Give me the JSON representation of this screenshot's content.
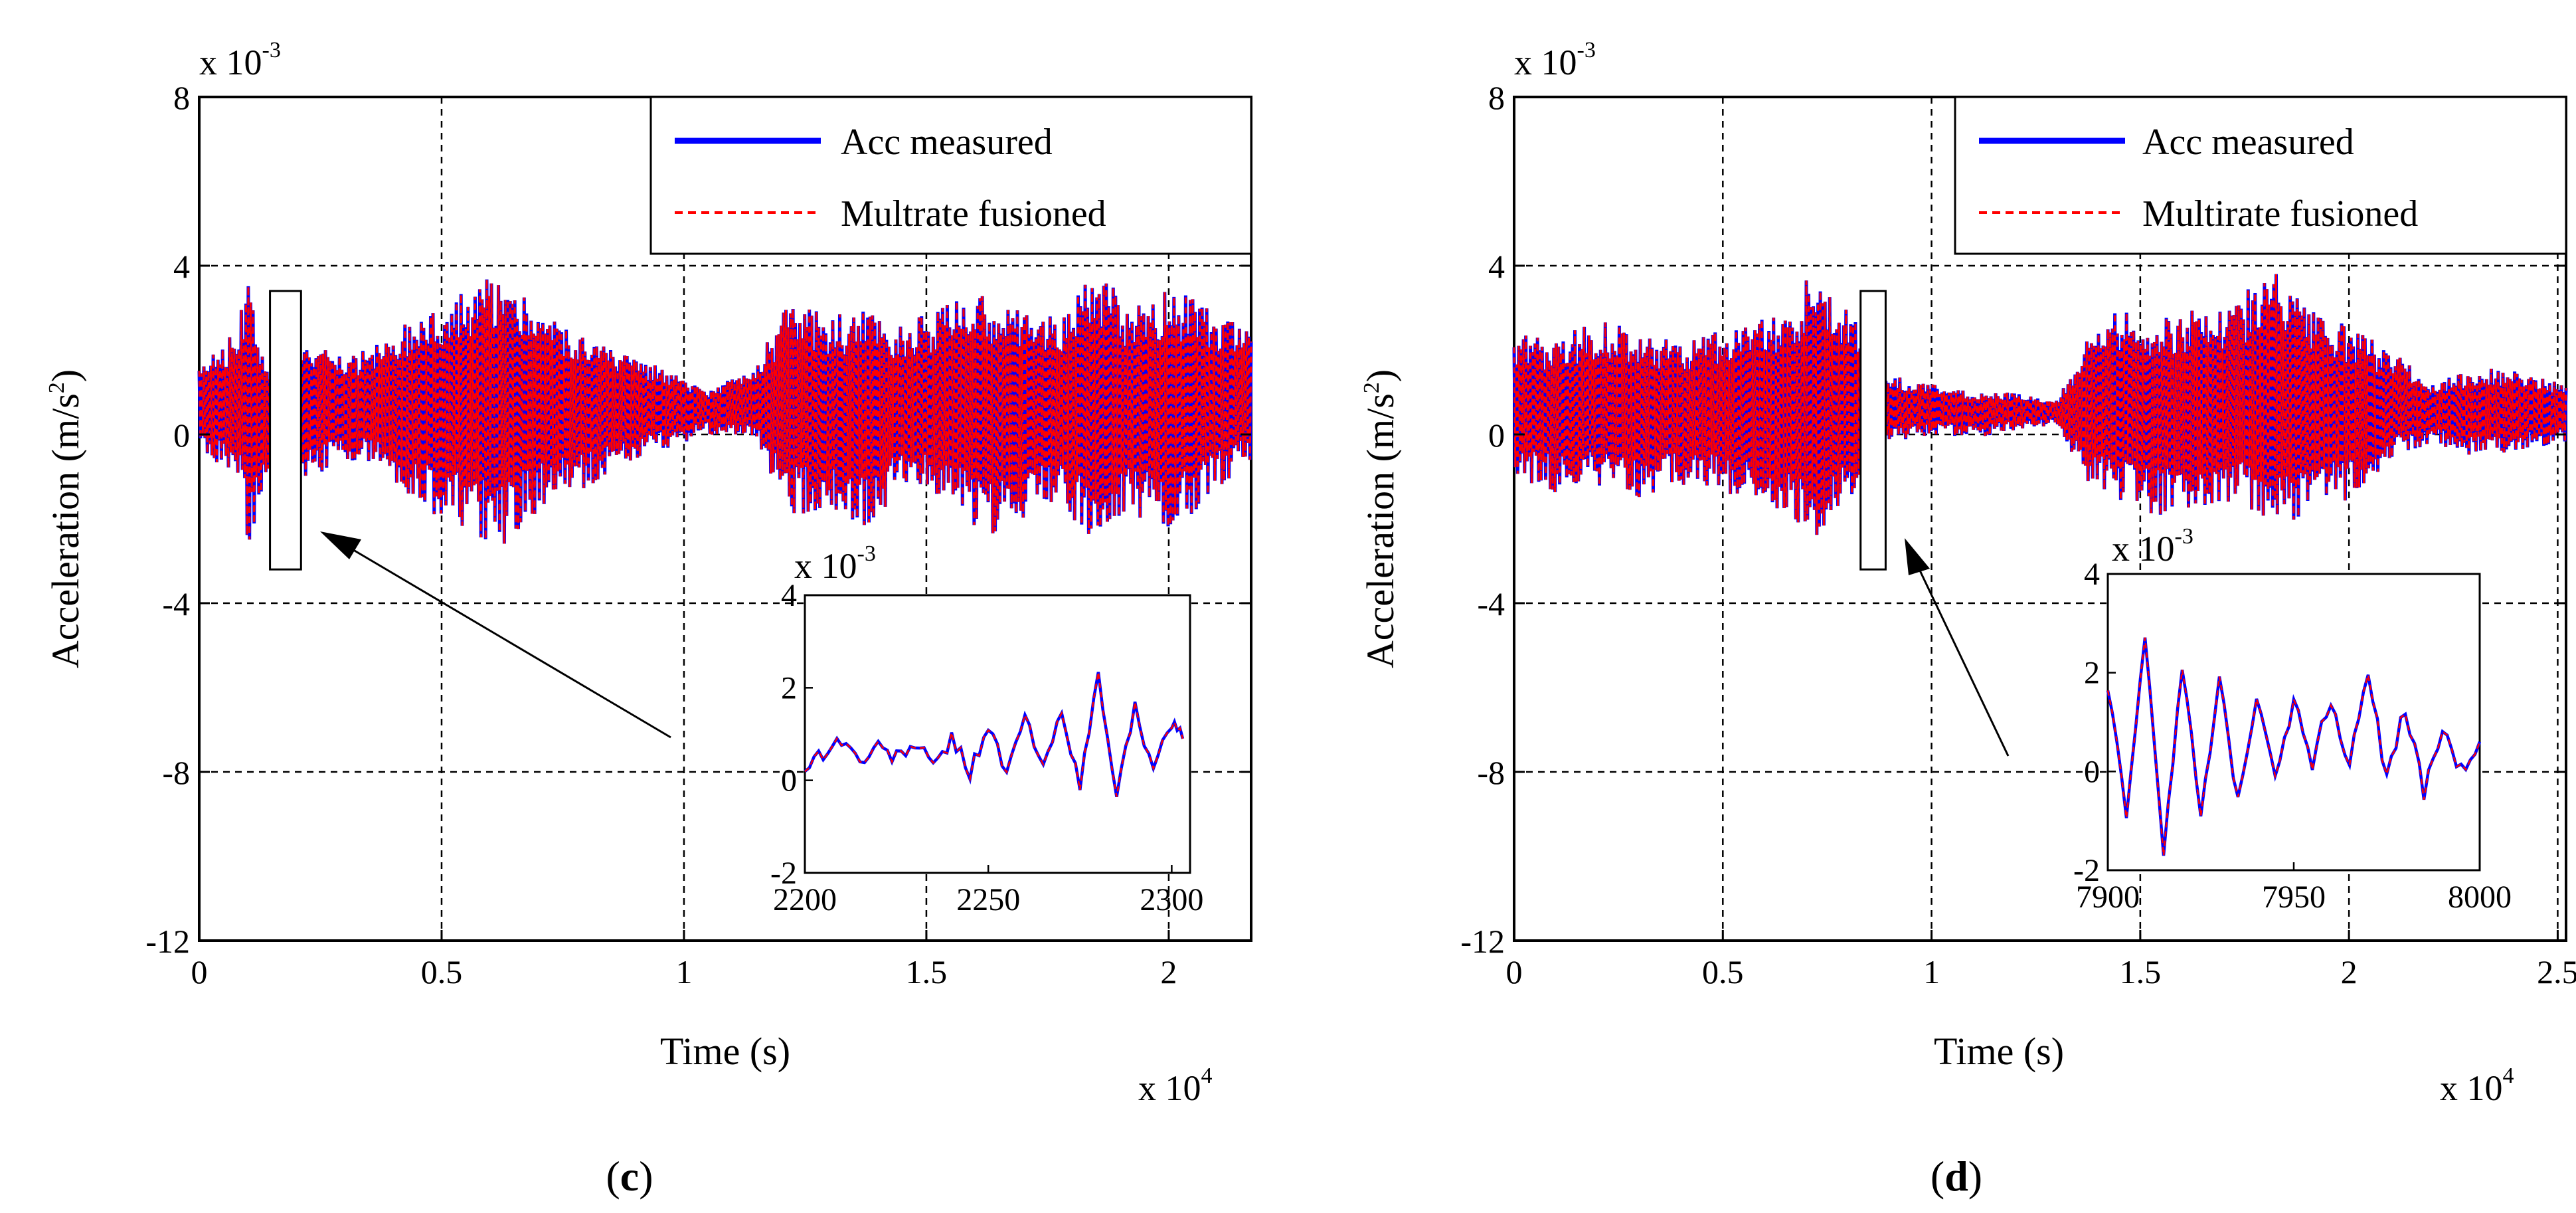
{
  "figure": {
    "colors": {
      "measured": "#0000ff",
      "fusioned": "#ff0000",
      "grid": "#000000",
      "axes": "#000000"
    }
  },
  "panels": [
    {
      "id": "c",
      "caption": "(c)",
      "caption_letter": "c",
      "xlabel": "Time (s)",
      "ylabel_main": "Acceleration (m/s",
      "ylabel_sup": "2",
      "ylabel_close": ")",
      "y_exponent_base": "x 10",
      "y_exponent_power": "-3",
      "x_exponent_base": "x 10",
      "x_exponent_power": "4",
      "legend": [
        "Acc measured",
        "Multrate fusioned"
      ],
      "inset_y_exponent_base": "x 10",
      "inset_y_exponent_power": "-3"
    },
    {
      "id": "d",
      "caption": "(d)",
      "caption_letter": "d",
      "xlabel": "Time (s)",
      "ylabel_main": "Acceleration (m/s",
      "ylabel_sup": "2",
      "ylabel_close": ")",
      "y_exponent_base": "x 10",
      "y_exponent_power": "-3",
      "x_exponent_base": "x 10",
      "x_exponent_power": "4",
      "legend": [
        "Acc measured",
        "Multirate fusioned"
      ],
      "inset_y_exponent_base": "x 10",
      "inset_y_exponent_power": "-3"
    }
  ],
  "chart_data": [
    {
      "type": "line",
      "panel": "c",
      "title": "",
      "xlabel": "Time (s)",
      "ylabel": "Acceleration (m/s2)",
      "x_scale_note": "x 10^4",
      "y_scale_note": "x 10^-3",
      "xlim": [
        0,
        2.17
      ],
      "ylim": [
        -12,
        8
      ],
      "xticks": [
        0,
        0.5,
        1,
        1.5,
        2
      ],
      "xtick_labels": [
        "0",
        "0.5",
        "1",
        "1.5",
        "2"
      ],
      "yticks": [
        -12,
        -8,
        -4,
        0,
        4,
        8
      ],
      "ytick_labels": [
        "-12",
        "-8",
        "-4",
        "0",
        "4",
        "8"
      ],
      "grid": true,
      "legend_position": "top-right",
      "series": [
        {
          "name": "Acc measured",
          "style": "solid",
          "color": "#0000ff"
        },
        {
          "name": "Multrate fusioned",
          "style": "dashed",
          "color": "#ff0000"
        }
      ],
      "envelope": {
        "x": [
          0,
          0.08,
          0.1,
          0.14,
          0.2,
          0.3,
          0.38,
          0.45,
          0.55,
          0.62,
          0.68,
          0.75,
          0.85,
          0.95,
          1.05,
          1.15,
          1.22,
          1.3,
          1.38,
          1.45,
          1.55,
          1.62,
          1.7,
          1.78,
          1.85,
          1.92,
          2.0,
          2.08,
          2.17
        ],
        "upper": [
          1.8,
          2.5,
          4.0,
          1.5,
          2.3,
          1.8,
          2.2,
          3.0,
          3.5,
          3.8,
          3.2,
          2.6,
          2.0,
          1.6,
          1.0,
          1.8,
          3.2,
          2.8,
          3.0,
          2.6,
          3.2,
          3.4,
          3.0,
          2.8,
          4.0,
          3.0,
          3.6,
          3.0,
          2.5
        ],
        "lower": [
          -0.5,
          -1.0,
          -2.8,
          -0.8,
          -1.2,
          -0.6,
          -0.8,
          -1.8,
          -2.2,
          -2.8,
          -2.0,
          -1.5,
          -1.0,
          -0.4,
          0.0,
          -0.2,
          -2.0,
          -1.8,
          -2.5,
          -1.2,
          -1.5,
          -2.6,
          -2.0,
          -1.6,
          -3.0,
          -1.8,
          -2.5,
          -1.5,
          -0.6
        ],
        "center": 0.7
      },
      "highlight_box": {
        "x_range": [
          0.146,
          0.21
        ],
        "y_range": [
          -3.2,
          3.4
        ]
      },
      "inset": {
        "xlim": [
          2200,
          2305
        ],
        "ylim": [
          -2,
          4
        ],
        "xticks": [
          2200,
          2250,
          2300
        ],
        "yticks": [
          -2,
          0,
          2,
          4
        ],
        "x": [
          2200,
          2205,
          2210,
          2215,
          2220,
          2225,
          2230,
          2235,
          2240,
          2245,
          2250,
          2255,
          2260,
          2265,
          2270,
          2275,
          2280,
          2285,
          2290,
          2295,
          2300,
          2303
        ],
        "y": [
          0.3,
          0.6,
          0.9,
          0.4,
          0.7,
          0.5,
          0.8,
          0.3,
          0.9,
          0.2,
          1.2,
          0.1,
          1.4,
          0.2,
          1.6,
          -0.2,
          2.3,
          -0.4,
          1.7,
          0.1,
          1.3,
          0.9
        ]
      }
    },
    {
      "type": "line",
      "panel": "d",
      "title": "",
      "xlabel": "Time (s)",
      "ylabel": "Acceleration (m/s2)",
      "x_scale_note": "x 10^4",
      "y_scale_note": "x 10^-3",
      "xlim": [
        0,
        2.52
      ],
      "ylim": [
        -12,
        8
      ],
      "xticks": [
        0,
        0.5,
        1,
        1.5,
        2,
        2.5
      ],
      "xtick_labels": [
        "0",
        "0.5",
        "1",
        "1.5",
        "2",
        "2.5"
      ],
      "yticks": [
        -12,
        -8,
        -4,
        0,
        4,
        8
      ],
      "ytick_labels": [
        "-12",
        "-8",
        "-4",
        "0",
        "4",
        "8"
      ],
      "grid": true,
      "legend_position": "top-right",
      "series": [
        {
          "name": "Acc measured",
          "style": "solid",
          "color": "#0000ff"
        },
        {
          "name": "Multirate fusioned",
          "style": "dashed",
          "color": "#ff0000"
        }
      ],
      "envelope": {
        "x": [
          0,
          0.1,
          0.2,
          0.3,
          0.4,
          0.5,
          0.6,
          0.68,
          0.72,
          0.8,
          0.9,
          1.0,
          1.1,
          1.2,
          1.3,
          1.38,
          1.45,
          1.55,
          1.65,
          1.75,
          1.82,
          1.9,
          2.0,
          2.1,
          2.2,
          2.3,
          2.4,
          2.52
        ],
        "upper": [
          2.5,
          2.2,
          2.8,
          2.4,
          2.2,
          2.6,
          2.8,
          3.4,
          4.2,
          3.0,
          1.4,
          1.2,
          1.0,
          1.0,
          0.8,
          2.4,
          3.0,
          2.8,
          3.0,
          3.4,
          4.0,
          3.0,
          2.6,
          2.0,
          1.2,
          1.6,
          1.5,
          1.2
        ],
        "lower": [
          -1.0,
          -1.4,
          -1.2,
          -1.6,
          -1.2,
          -1.4,
          -1.6,
          -2.2,
          -2.6,
          -1.6,
          -0.2,
          0.0,
          -0.1,
          0.1,
          0.2,
          -1.2,
          -1.6,
          -2.0,
          -1.8,
          -1.6,
          -2.4,
          -1.8,
          -1.6,
          -0.6,
          -0.2,
          -0.6,
          -0.4,
          -0.2
        ],
        "center": 0.6
      },
      "highlight_box": {
        "x_range": [
          0.83,
          0.89
        ],
        "y_range": [
          -3.2,
          3.4
        ]
      },
      "inset": {
        "xlim": [
          7900,
          8000
        ],
        "ylim": [
          -2,
          4
        ],
        "xticks": [
          7900,
          7950,
          8000
        ],
        "yticks": [
          -2,
          0,
          2,
          4
        ],
        "x": [
          7900,
          7905,
          7910,
          7915,
          7920,
          7925,
          7930,
          7935,
          7940,
          7945,
          7950,
          7955,
          7960,
          7965,
          7970,
          7975,
          7980,
          7985,
          7990,
          7995,
          8000
        ],
        "y": [
          1.6,
          -0.8,
          2.8,
          -1.6,
          2.2,
          -1.0,
          1.8,
          -0.6,
          1.6,
          0.0,
          1.4,
          0.2,
          1.5,
          0.1,
          2.1,
          -0.2,
          1.3,
          -0.4,
          0.8,
          0.0,
          0.6
        ]
      }
    }
  ]
}
